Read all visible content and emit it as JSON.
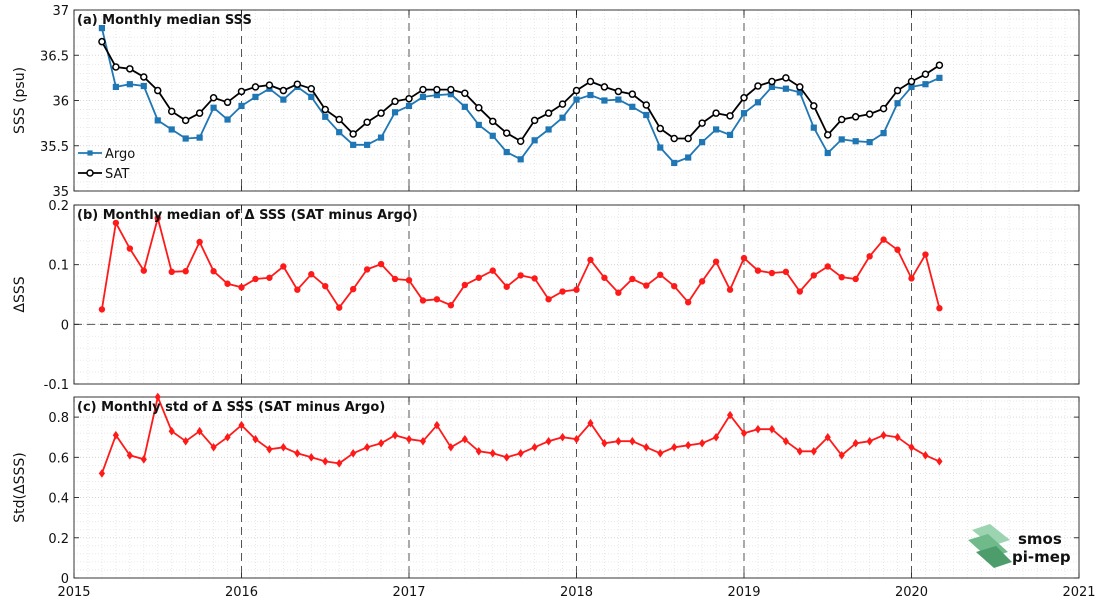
{
  "chart_data": [
    {
      "type": "line",
      "panel": "a",
      "title": "(a) Monthly median SSS",
      "ylabel": "SSS (psu)",
      "ylim": [
        35,
        37
      ],
      "yticks": [
        35,
        35.5,
        36,
        36.5,
        37
      ],
      "ytick_labels": [
        "35",
        "35.5",
        "36",
        "36.5",
        "37"
      ],
      "xlim": [
        2015,
        2021
      ],
      "grid": true,
      "legend_position": "bottom-left",
      "x": [
        "2015-03",
        "2015-04",
        "2015-05",
        "2015-06",
        "2015-07",
        "2015-08",
        "2015-09",
        "2015-10",
        "2015-11",
        "2015-12",
        "2016-01",
        "2016-02",
        "2016-03",
        "2016-04",
        "2016-05",
        "2016-06",
        "2016-07",
        "2016-08",
        "2016-09",
        "2016-10",
        "2016-11",
        "2016-12",
        "2017-01",
        "2017-02",
        "2017-03",
        "2017-04",
        "2017-05",
        "2017-06",
        "2017-07",
        "2017-08",
        "2017-09",
        "2017-10",
        "2017-11",
        "2017-12",
        "2018-01",
        "2018-02",
        "2018-03",
        "2018-04",
        "2018-05",
        "2018-06",
        "2018-07",
        "2018-08",
        "2018-09",
        "2018-10",
        "2018-11",
        "2018-12",
        "2019-01",
        "2019-02",
        "2019-03",
        "2019-04",
        "2019-05",
        "2019-06",
        "2019-07",
        "2019-08",
        "2019-09",
        "2019-10",
        "2019-11",
        "2019-12",
        "2020-01",
        "2020-02",
        "2020-03"
      ],
      "series": [
        {
          "name": "Argo",
          "color": "#1f77b4",
          "marker": "square",
          "values": [
            36.8,
            36.15,
            36.18,
            36.16,
            35.78,
            35.68,
            35.58,
            35.59,
            35.92,
            35.79,
            35.94,
            36.04,
            36.13,
            36.01,
            36.15,
            36.04,
            35.82,
            35.65,
            35.51,
            35.51,
            35.59,
            35.87,
            35.94,
            36.04,
            36.06,
            36.07,
            35.93,
            35.73,
            35.61,
            35.43,
            35.35,
            35.56,
            35.68,
            35.81,
            36.01,
            36.06,
            36.0,
            36.01,
            35.93,
            35.84,
            35.48,
            35.31,
            35.37,
            35.54,
            35.68,
            35.62,
            35.86,
            35.98,
            36.15,
            36.13,
            36.09,
            35.7,
            35.42,
            35.57,
            35.55,
            35.54,
            35.64,
            35.97,
            36.15,
            36.18,
            36.25
          ]
        },
        {
          "name": "SAT",
          "color": "#000000",
          "marker": "circle",
          "values": [
            36.65,
            36.37,
            36.35,
            36.26,
            36.11,
            35.88,
            35.78,
            35.86,
            36.03,
            35.98,
            36.1,
            36.15,
            36.17,
            36.11,
            36.18,
            36.13,
            35.9,
            35.79,
            35.63,
            35.76,
            35.86,
            35.99,
            36.02,
            36.12,
            36.12,
            36.12,
            36.08,
            35.92,
            35.77,
            35.64,
            35.55,
            35.78,
            35.86,
            35.96,
            36.11,
            36.21,
            36.15,
            36.1,
            36.07,
            35.95,
            35.69,
            35.58,
            35.58,
            35.75,
            35.86,
            35.83,
            36.03,
            36.16,
            36.21,
            36.25,
            36.15,
            35.94,
            35.62,
            35.79,
            35.82,
            35.85,
            35.91,
            36.11,
            36.21,
            36.29,
            36.39
          ]
        }
      ]
    },
    {
      "type": "line",
      "panel": "b",
      "title": "(b) Monthly median of Δ SSS (SAT minus Argo)",
      "ylabel": "ΔSSS",
      "ylim": [
        -0.1,
        0.2
      ],
      "yticks": [
        -0.1,
        0,
        0.1,
        0.2
      ],
      "ytick_labels": [
        "-0.1",
        "0",
        "0.1",
        "0.2"
      ],
      "xlim": [
        2015,
        2021
      ],
      "grid": true,
      "zero_line": true,
      "x": [
        "2015-03",
        "2015-04",
        "2015-05",
        "2015-06",
        "2015-07",
        "2015-08",
        "2015-09",
        "2015-10",
        "2015-11",
        "2015-12",
        "2016-01",
        "2016-02",
        "2016-03",
        "2016-04",
        "2016-05",
        "2016-06",
        "2016-07",
        "2016-08",
        "2016-09",
        "2016-10",
        "2016-11",
        "2016-12",
        "2017-01",
        "2017-02",
        "2017-03",
        "2017-04",
        "2017-05",
        "2017-06",
        "2017-07",
        "2017-08",
        "2017-09",
        "2017-10",
        "2017-11",
        "2017-12",
        "2018-01",
        "2018-02",
        "2018-03",
        "2018-04",
        "2018-05",
        "2018-06",
        "2018-07",
        "2018-08",
        "2018-09",
        "2018-10",
        "2018-11",
        "2018-12",
        "2019-01",
        "2019-02",
        "2019-03",
        "2019-04",
        "2019-05",
        "2019-06",
        "2019-07",
        "2019-08",
        "2019-09",
        "2019-10",
        "2019-11",
        "2019-12",
        "2020-01",
        "2020-02",
        "2020-03"
      ],
      "series": [
        {
          "color": "#ff1a1a",
          "marker": "circle",
          "values": [
            0.025,
            0.17,
            0.127,
            0.09,
            0.178,
            0.088,
            0.089,
            0.138,
            0.089,
            0.068,
            0.062,
            0.076,
            0.078,
            0.097,
            0.058,
            0.084,
            0.064,
            0.028,
            0.059,
            0.092,
            0.101,
            0.076,
            0.074,
            0.04,
            0.042,
            0.032,
            0.066,
            0.078,
            0.09,
            0.063,
            0.082,
            0.077,
            0.042,
            0.055,
            0.058,
            0.108,
            0.078,
            0.053,
            0.076,
            0.065,
            0.083,
            0.064,
            0.037,
            0.072,
            0.105,
            0.058,
            0.111,
            0.09,
            0.086,
            0.088,
            0.055,
            0.082,
            0.097,
            0.079,
            0.076,
            0.114,
            0.142,
            0.125,
            0.077,
            0.117,
            0.027
          ]
        }
      ]
    },
    {
      "type": "line",
      "panel": "c",
      "title": "(c) Monthly std of Δ SSS (SAT minus Argo)",
      "ylabel": "Std(ΔSSS)",
      "ylim": [
        0,
        0.9
      ],
      "yticks": [
        0,
        0.2,
        0.4,
        0.6,
        0.8
      ],
      "ytick_labels": [
        "0",
        "0.2",
        "0.4",
        "0.6",
        "0.8"
      ],
      "xlim": [
        2015,
        2021
      ],
      "xticks": [
        2015,
        2016,
        2017,
        2018,
        2019,
        2020,
        2021
      ],
      "xtick_labels": [
        "2015",
        "2016",
        "2017",
        "2018",
        "2019",
        "2020",
        "2021"
      ],
      "grid": true,
      "x": [
        "2015-03",
        "2015-04",
        "2015-05",
        "2015-06",
        "2015-07",
        "2015-08",
        "2015-09",
        "2015-10",
        "2015-11",
        "2015-12",
        "2016-01",
        "2016-02",
        "2016-03",
        "2016-04",
        "2016-05",
        "2016-06",
        "2016-07",
        "2016-08",
        "2016-09",
        "2016-10",
        "2016-11",
        "2016-12",
        "2017-01",
        "2017-02",
        "2017-03",
        "2017-04",
        "2017-05",
        "2017-06",
        "2017-07",
        "2017-08",
        "2017-09",
        "2017-10",
        "2017-11",
        "2017-12",
        "2018-01",
        "2018-02",
        "2018-03",
        "2018-04",
        "2018-05",
        "2018-06",
        "2018-07",
        "2018-08",
        "2018-09",
        "2018-10",
        "2018-11",
        "2018-12",
        "2019-01",
        "2019-02",
        "2019-03",
        "2019-04",
        "2019-05",
        "2019-06",
        "2019-07",
        "2019-08",
        "2019-09",
        "2019-10",
        "2019-11",
        "2019-12",
        "2020-01",
        "2020-02",
        "2020-03"
      ],
      "series": [
        {
          "color": "#ff1a1a",
          "marker": "diamond",
          "values": [
            0.52,
            0.71,
            0.61,
            0.59,
            0.9,
            0.73,
            0.68,
            0.73,
            0.65,
            0.7,
            0.76,
            0.69,
            0.64,
            0.65,
            0.62,
            0.6,
            0.58,
            0.57,
            0.62,
            0.65,
            0.67,
            0.71,
            0.69,
            0.68,
            0.76,
            0.65,
            0.69,
            0.63,
            0.62,
            0.6,
            0.62,
            0.65,
            0.68,
            0.7,
            0.69,
            0.77,
            0.67,
            0.68,
            0.68,
            0.65,
            0.62,
            0.65,
            0.66,
            0.67,
            0.7,
            0.81,
            0.72,
            0.74,
            0.74,
            0.68,
            0.63,
            0.63,
            0.7,
            0.61,
            0.67,
            0.68,
            0.71,
            0.7,
            0.65,
            0.61,
            0.58
          ]
        }
      ]
    }
  ],
  "vertical_markers": {
    "x": [
      2016,
      2017,
      2018,
      2019,
      2020
    ],
    "style": "dashed",
    "color": "#555555"
  },
  "logo": {
    "line1": "smos",
    "line2": "pi-mep",
    "color": "#5aa97a"
  }
}
